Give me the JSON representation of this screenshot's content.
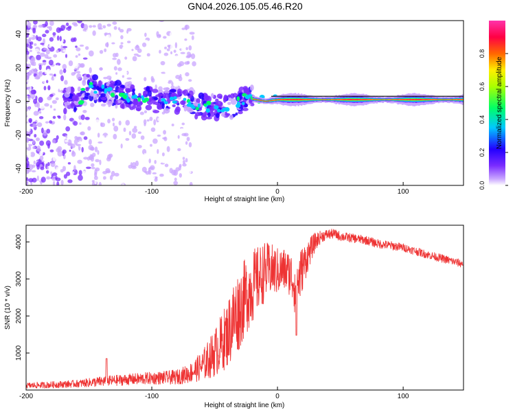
{
  "figure": {
    "title": "GN04.2026.105.05.46.R20"
  },
  "chart_data": [
    {
      "type": "heatmap",
      "title": "GN04.2026.105.05.46.R20",
      "xlabel": "Height of straight line (km)",
      "ylabel": "Frequency (Hz)",
      "xlim": [
        -200,
        148
      ],
      "ylim": [
        -50,
        48
      ],
      "x_ticks": [
        -200,
        -100,
        0,
        100
      ],
      "x_tick_labels": [
        "-200",
        "-100",
        "0",
        "100"
      ],
      "y_ticks": [
        -40,
        -20,
        0,
        20,
        40
      ],
      "y_tick_labels": [
        "-40",
        "-20",
        "0",
        "20",
        "40"
      ],
      "colorbar": {
        "label": "Normalized spectral amplitude",
        "range": [
          0,
          1
        ],
        "ticks": [
          0,
          0.2,
          0.4,
          0.6,
          0.8
        ],
        "tick_labels": [
          "0.0",
          "0.2",
          "0.4",
          "0.6",
          "0.8"
        ],
        "colors": [
          "#ffffff",
          "#c9a6ff",
          "#7a2cff",
          "#2200ff",
          "#00c8ff",
          "#00ff66",
          "#aaff00",
          "#ffee00",
          "#ff6600",
          "#ff0044",
          "#ff33aa"
        ]
      },
      "ridge": [
        {
          "x": -155,
          "y": 9
        },
        {
          "x": -140,
          "y": 7
        },
        {
          "x": -120,
          "y": 3
        },
        {
          "x": -100,
          "y": 1
        },
        {
          "x": -80,
          "y": 0
        },
        {
          "x": -60,
          "y": -3
        },
        {
          "x": -40,
          "y": -4
        },
        {
          "x": -25,
          "y": 2
        },
        {
          "x": -10,
          "y": 0
        },
        {
          "x": 0,
          "y": 1
        },
        {
          "x": 20,
          "y": 1
        },
        {
          "x": 60,
          "y": 1
        },
        {
          "x": 100,
          "y": 1
        },
        {
          "x": 148,
          "y": 1
        }
      ]
    },
    {
      "type": "line",
      "xlabel": "Height of straight line (km)",
      "ylabel": "SNR (10 * v/v)",
      "xlim": [
        -200,
        148
      ],
      "ylim": [
        0,
        4450
      ],
      "x_ticks": [
        -200,
        -100,
        0,
        100
      ],
      "x_tick_labels": [
        "-200",
        "-100",
        "0",
        "100"
      ],
      "y_ticks": [
        1000,
        2000,
        3000,
        4000
      ],
      "y_tick_labels": [
        "1000",
        "2000",
        "3000",
        "4000"
      ],
      "line_color": "#ee3333",
      "series": [
        {
          "name": "SNR",
          "x": [
            -200,
            -180,
            -160,
            -140,
            -120,
            -100,
            -90,
            -80,
            -70,
            -60,
            -50,
            -40,
            -35,
            -30,
            -25,
            -20,
            -15,
            -10,
            -5,
            0,
            5,
            10,
            15,
            20,
            25,
            30,
            35,
            40,
            45,
            50,
            60,
            70,
            80,
            90,
            100,
            110,
            120,
            130,
            140,
            148
          ],
          "y": [
            120,
            140,
            170,
            230,
            280,
            320,
            330,
            350,
            450,
            650,
            1000,
            1500,
            1900,
            2200,
            2550,
            2800,
            3000,
            3200,
            3250,
            3200,
            3250,
            3150,
            2800,
            3300,
            3700,
            4000,
            4150,
            4200,
            4220,
            4150,
            4100,
            4050,
            3950,
            3900,
            3850,
            3750,
            3650,
            3560,
            3470,
            3400
          ],
          "spread": [
            80,
            90,
            100,
            140,
            150,
            170,
            180,
            200,
            260,
            400,
            650,
            900,
            1100,
            1100,
            1050,
            1000,
            900,
            800,
            700,
            650,
            600,
            600,
            900,
            600,
            400,
            250,
            160,
            140,
            130,
            130,
            120,
            120,
            120,
            120,
            110,
            110,
            110,
            110,
            110,
            110
          ]
        }
      ]
    }
  ]
}
